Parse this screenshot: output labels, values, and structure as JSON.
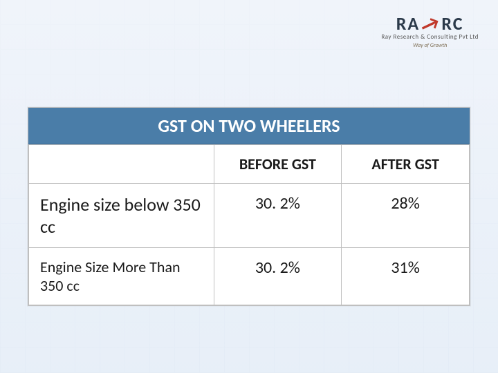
{
  "logo": {
    "brand": "RAYRC",
    "subtitle": "Ray Research & Consulting Pvt Ltd",
    "tagline": "Way of Growth"
  },
  "table": {
    "title": "GST  ON TWO WHEELERS",
    "columns": [
      "",
      "BEFORE GST",
      "AFTER GST"
    ],
    "rows": [
      {
        "label": "Engine size below 350 cc",
        "before": "30. 2%",
        "after": "28%"
      },
      {
        "label": "Engine Size More Than 350 cc",
        "before": "30. 2%",
        "after": "31%"
      }
    ],
    "colors": {
      "header_bg": "#4a7da8",
      "header_text": "#ffffff",
      "cell_bg": "#ffffff",
      "border": "#bfbfbf",
      "text": "#1a1a1a"
    },
    "font_sizes": {
      "title": 26,
      "col_header": 22,
      "row0_label": 26,
      "row1_label": 22,
      "value": 24
    }
  }
}
